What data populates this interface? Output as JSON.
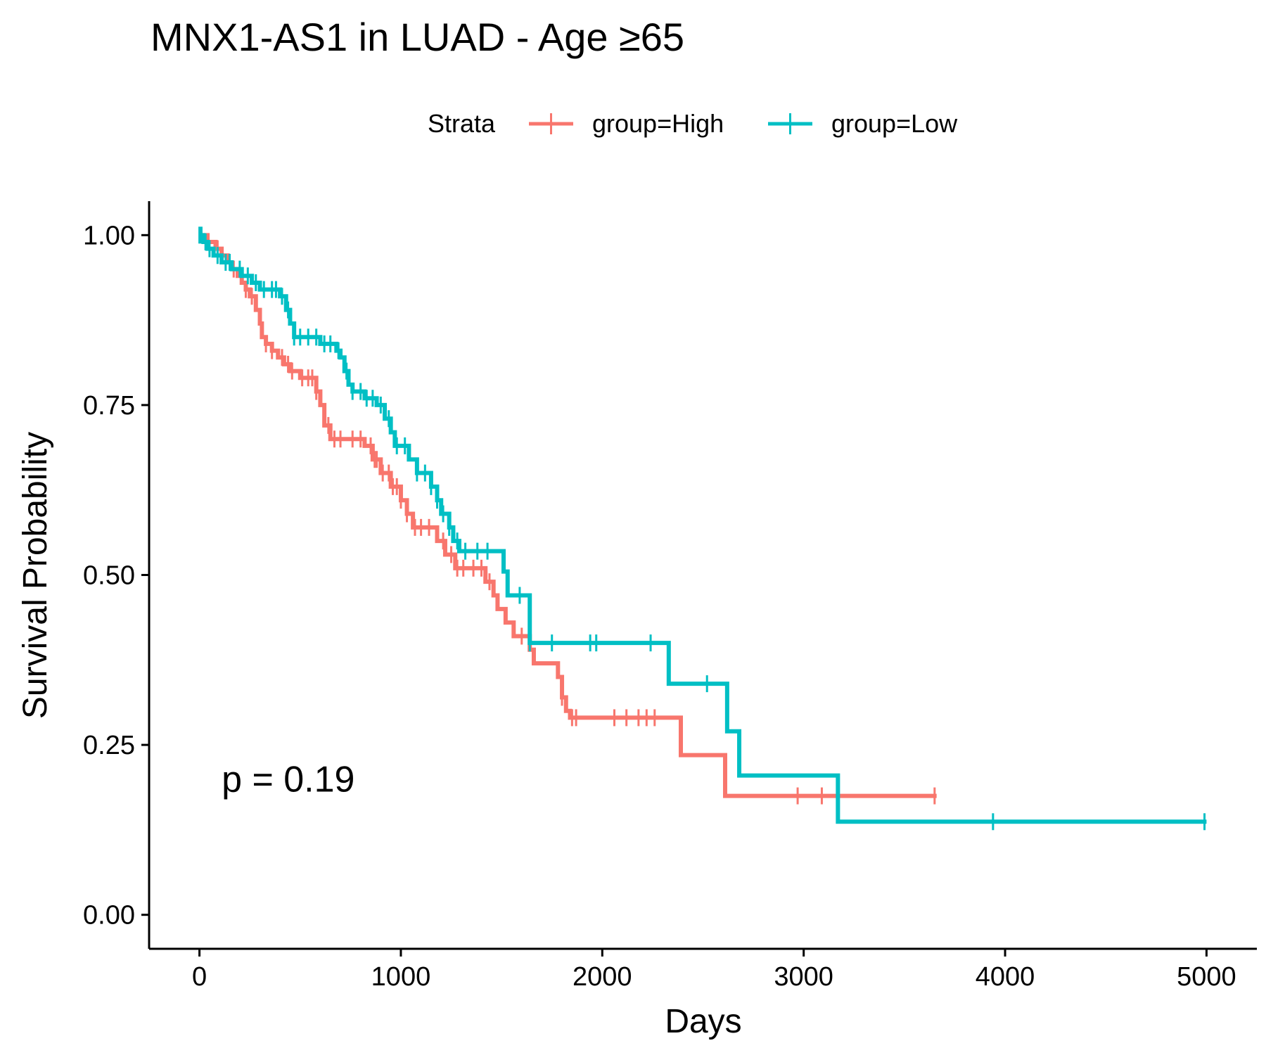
{
  "chart_data": {
    "type": "line",
    "subtype": "kaplan-meier",
    "title": "MNX1-AS1 in LUAD - Age ≥65",
    "xlabel": "Days",
    "ylabel": "Survival Probability",
    "xlim": [
      -250,
      5250
    ],
    "ylim": [
      -0.05,
      1.05
    ],
    "x_ticks": [
      0,
      1000,
      2000,
      3000,
      4000,
      5000
    ],
    "x_tick_labels": [
      "0",
      "1000",
      "2000",
      "3000",
      "4000",
      "5000"
    ],
    "y_ticks": [
      0,
      0.25,
      0.5,
      0.75,
      1.0
    ],
    "y_tick_labels": [
      "0.00",
      "0.25",
      "0.50",
      "0.75",
      "1.00"
    ],
    "grid": false,
    "legend": {
      "title": "Strata",
      "position": "top"
    },
    "annotation": "p = 0.19",
    "annotation_pos": [
      110,
      0.2
    ],
    "series": [
      {
        "name": "group=High",
        "color": "#F8766D",
        "steps": [
          [
            0,
            1.0
          ],
          [
            40,
            0.99
          ],
          [
            80,
            0.98
          ],
          [
            110,
            0.97
          ],
          [
            140,
            0.96
          ],
          [
            160,
            0.95
          ],
          [
            190,
            0.94
          ],
          [
            210,
            0.93
          ],
          [
            230,
            0.92
          ],
          [
            250,
            0.91
          ],
          [
            280,
            0.89
          ],
          [
            300,
            0.87
          ],
          [
            310,
            0.85
          ],
          [
            330,
            0.84
          ],
          [
            360,
            0.83
          ],
          [
            390,
            0.82
          ],
          [
            420,
            0.81
          ],
          [
            450,
            0.8
          ],
          [
            500,
            0.79
          ],
          [
            580,
            0.77
          ],
          [
            600,
            0.75
          ],
          [
            620,
            0.72
          ],
          [
            650,
            0.7
          ],
          [
            820,
            0.69
          ],
          [
            860,
            0.67
          ],
          [
            900,
            0.65
          ],
          [
            950,
            0.63
          ],
          [
            1000,
            0.61
          ],
          [
            1030,
            0.59
          ],
          [
            1060,
            0.57
          ],
          [
            1180,
            0.55
          ],
          [
            1220,
            0.53
          ],
          [
            1270,
            0.51
          ],
          [
            1420,
            0.49
          ],
          [
            1460,
            0.47
          ],
          [
            1480,
            0.45
          ],
          [
            1520,
            0.43
          ],
          [
            1560,
            0.41
          ],
          [
            1640,
            0.39
          ],
          [
            1660,
            0.37
          ],
          [
            1780,
            0.35
          ],
          [
            1800,
            0.32
          ],
          [
            1820,
            0.3
          ],
          [
            1840,
            0.29
          ],
          [
            2390,
            0.235
          ],
          [
            2610,
            0.175
          ]
        ],
        "end": 3660,
        "censor_x": [
          40,
          90,
          170,
          230,
          260,
          330,
          360,
          410,
          440,
          460,
          510,
          540,
          560,
          580,
          640,
          670,
          700,
          760,
          800,
          850,
          870,
          880,
          910,
          940,
          960,
          980,
          1000,
          1030,
          1070,
          1100,
          1140,
          1210,
          1250,
          1280,
          1310,
          1360,
          1400,
          1440,
          1600,
          1800,
          1850,
          1870,
          2060,
          2120,
          2180,
          2220,
          2260,
          2970,
          3090,
          3650
        ]
      },
      {
        "name": "group=Low",
        "color": "#00BFC4",
        "steps": [
          [
            0,
            1.0
          ],
          [
            20,
            0.99
          ],
          [
            40,
            0.98
          ],
          [
            70,
            0.97
          ],
          [
            110,
            0.96
          ],
          [
            160,
            0.95
          ],
          [
            210,
            0.94
          ],
          [
            260,
            0.93
          ],
          [
            300,
            0.92
          ],
          [
            400,
            0.91
          ],
          [
            430,
            0.89
          ],
          [
            450,
            0.87
          ],
          [
            470,
            0.85
          ],
          [
            600,
            0.84
          ],
          [
            680,
            0.83
          ],
          [
            700,
            0.82
          ],
          [
            720,
            0.8
          ],
          [
            740,
            0.78
          ],
          [
            760,
            0.77
          ],
          [
            820,
            0.76
          ],
          [
            880,
            0.75
          ],
          [
            920,
            0.73
          ],
          [
            950,
            0.71
          ],
          [
            970,
            0.69
          ],
          [
            1040,
            0.67
          ],
          [
            1080,
            0.65
          ],
          [
            1150,
            0.63
          ],
          [
            1180,
            0.61
          ],
          [
            1200,
            0.59
          ],
          [
            1240,
            0.57
          ],
          [
            1260,
            0.55
          ],
          [
            1290,
            0.535
          ],
          [
            1510,
            0.505
          ],
          [
            1530,
            0.47
          ],
          [
            1640,
            0.4
          ],
          [
            2330,
            0.34
          ],
          [
            2620,
            0.27
          ],
          [
            2680,
            0.205
          ],
          [
            3170,
            0.137
          ]
        ],
        "end": 5000,
        "censor_x": [
          0,
          10,
          30,
          50,
          90,
          130,
          150,
          200,
          240,
          280,
          320,
          360,
          380,
          410,
          440,
          470,
          500,
          540,
          580,
          620,
          650,
          690,
          730,
          760,
          800,
          830,
          860,
          900,
          940,
          980,
          1020,
          1080,
          1120,
          1150,
          1180,
          1210,
          1240,
          1280,
          1320,
          1380,
          1430,
          1590,
          1640,
          1750,
          1940,
          1970,
          2240,
          2520,
          3940,
          4990
        ]
      }
    ]
  }
}
